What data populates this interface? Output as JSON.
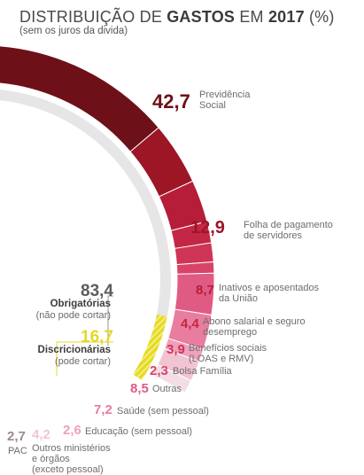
{
  "title": {
    "prefix": "DISTRIBUIÇÃO DE ",
    "bold1": "GASTOS",
    "mid": " EM ",
    "bold2": "2017",
    "suffix": " (%)",
    "subtitle": "(sem os juros da divida)"
  },
  "groups": [
    {
      "value": "83,4",
      "name": "Obrigatórias",
      "sub": "(não pode cortar)",
      "color": "#5c5c5c"
    },
    {
      "value": "16,7",
      "name": "Discricionárias",
      "sub": "(pode cortar)",
      "color": "#e3d829"
    }
  ],
  "chart_data": {
    "type": "pie",
    "title": "DISTRIBUIÇÃO DE GASTOS EM 2017 (%)",
    "subtitle": "(sem os juros da divida)",
    "slices": [
      {
        "value": 42.7,
        "display": "42,7",
        "label": "Previdência Social",
        "lines": [
          "Previdência",
          "Social"
        ],
        "color": "#6e1018"
      },
      {
        "value": 12.9,
        "display": "12,9",
        "label": "Folha de pagamento de servidores",
        "lines": [
          "Folha de pagamento",
          "de servidores"
        ],
        "color": "#9c1626"
      },
      {
        "value": 8.7,
        "display": "8,7",
        "label": "Inativos e aposentados da União",
        "lines": [
          "Inativos e aposentados",
          "da União"
        ],
        "color": "#b61d39"
      },
      {
        "value": 4.4,
        "display": "4,4",
        "label": "Abono salarial e seguro desemprego",
        "lines": [
          "Abono salarial e seguro",
          "desemprego"
        ],
        "color": "#c42745"
      },
      {
        "value": 3.9,
        "display": "3,9",
        "label": "Benefícios sociais (LOAS e RMV)",
        "lines": [
          "Benefícios sociais",
          "(LOAS e RMV)"
        ],
        "color": "#cf3556"
      },
      {
        "value": 2.3,
        "display": "2,3",
        "label": "Bolsa Família",
        "lines": [
          "Bolsa Família"
        ],
        "color": "#d84468"
      },
      {
        "value": 8.5,
        "display": "8,5",
        "label": "Outras",
        "lines": [
          "Outras"
        ],
        "color": "#e05b83"
      },
      {
        "value": 7.2,
        "display": "7,2",
        "label": "Saúde (sem pessoal)",
        "lines": [
          "Saúde (sem pessoal)"
        ],
        "color": "#e97da0"
      },
      {
        "value": 2.6,
        "display": "2,6",
        "label": "Educação (sem pessoal)",
        "lines": [
          "Educação (sem pessoal)"
        ],
        "color": "#efa0bc"
      },
      {
        "value": 4.2,
        "display": "4,2",
        "label": "Outros ministérios e órgãos (exceto pessoal)",
        "lines": [
          "Outros ministérios",
          "e órgãos",
          "(exceto pessoal)"
        ],
        "color": "#f2c4d3"
      },
      {
        "value": 2.7,
        "display": "2,7",
        "label": "PAC",
        "lines": [
          "PAC"
        ],
        "color": "#f5dde5"
      }
    ],
    "inner_groups": [
      {
        "name": "Obrigatórias",
        "value": 83.4
      },
      {
        "name": "Discricionárias",
        "value": 16.7
      }
    ]
  }
}
